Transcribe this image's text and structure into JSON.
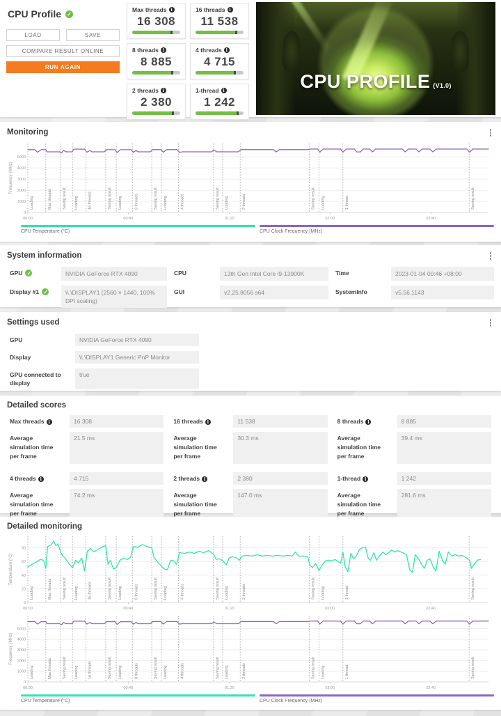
{
  "colors": {
    "accent_orange": "#f47b20",
    "score_green": "#72bf44",
    "bar_marker": "#4a4a4a",
    "temp_teal": "#2ee6b0",
    "freq_purple": "#8d64c8"
  },
  "header": {
    "title": "CPU Profile",
    "buttons": {
      "load": "LOAD",
      "save": "SAVE",
      "compare": "COMPARE RESULT ONLINE",
      "run_again": "RUN AGAIN"
    },
    "banner": {
      "title": "CPU PROFILE",
      "version": "(V1.0)"
    }
  },
  "scores": [
    {
      "label": "Max threads",
      "value": "16 308",
      "bar": 0.79
    },
    {
      "label": "16 threads",
      "value": "11 538",
      "bar": 0.82
    },
    {
      "label": "8 threads",
      "value": "8 885",
      "bar": 0.81
    },
    {
      "label": "4 threads",
      "value": "4 715",
      "bar": 0.8
    },
    {
      "label": "2 threads",
      "value": "2 380",
      "bar": 0.83
    },
    {
      "label": "1-thread",
      "value": "1 242",
      "bar": 0.85
    }
  ],
  "monitoring": {
    "title": "Monitoring"
  },
  "system_information": {
    "title": "System information",
    "entries": [
      {
        "label": "GPU",
        "value": "NVIDIA GeForce RTX 4090"
      },
      {
        "label": "CPU",
        "value": "13th Gen Intel Core i9-13900K"
      },
      {
        "label": "Time",
        "value": "2023-01-04 00:46 +08:00"
      },
      {
        "label": "Display #1",
        "value": "\\\\.\\DISPLAY1 (2560 × 1440, 100% DPI scaling)"
      },
      {
        "label": "GUI",
        "value": "v2.25.8056 s64"
      },
      {
        "label": "SystemInfo",
        "value": "v5.56.1143"
      }
    ]
  },
  "settings_used": {
    "title": "Settings used",
    "rows": [
      {
        "label": "GPU",
        "value": "NVIDIA GeForce RTX 4090"
      },
      {
        "label": "Display",
        "value": "\\\\.\\DISPLAY1 Generic PnP Monitor"
      },
      {
        "label": "GPU connected to display",
        "value": "true"
      }
    ]
  },
  "detailed_scores": {
    "title": "Detailed scores",
    "avg_label": "Average simulation time per frame",
    "items": [
      {
        "label": "Max threads",
        "score": "16 308",
        "avg": "21.5 ms"
      },
      {
        "label": "16 threads",
        "score": "11 538",
        "avg": "30.3 ms"
      },
      {
        "label": "8 threads",
        "score": "8 885",
        "avg": "39.4 ms"
      },
      {
        "label": "4 threads",
        "score": "4 715",
        "avg": "74.2 ms"
      },
      {
        "label": "2 threads",
        "score": "2 380",
        "avg": "147.0 ms"
      },
      {
        "label": "1-thread",
        "score": "1 242",
        "avg": "281.6 ms"
      }
    ]
  },
  "detailed_monitoring": {
    "title": "Detailed monitoring"
  },
  "legend": {
    "temperature": "CPU Temperature (°C)",
    "frequency": "CPU Clock Frequency (MHz)",
    "temp_color": "#2ee6b0",
    "freq_color": "#8d64c8"
  },
  "chart_data": [
    {
      "id": "cpu-clock-frequency",
      "type": "line",
      "ylabel": "Frequency (MHz)",
      "yticks": [
        0,
        1000,
        2000,
        3000,
        4000,
        5000
      ],
      "ylim": [
        0,
        6200
      ],
      "grid": true,
      "color": "#8d64c8",
      "xticks": [
        {
          "pos": 0,
          "label": "00:00"
        },
        {
          "pos": 21.8,
          "label": "00:40"
        },
        {
          "pos": 43.8,
          "label": "01:20"
        },
        {
          "pos": 65.6,
          "label": "02:00"
        },
        {
          "pos": 87.5,
          "label": "02:40"
        }
      ],
      "markers": [
        {
          "pos": 0,
          "label": "Loading"
        },
        {
          "pos": 3.9,
          "label": "Max threads"
        },
        {
          "pos": 7.1,
          "label": "Saving result"
        },
        {
          "pos": 9.7,
          "label": "Loading"
        },
        {
          "pos": 12.6,
          "label": "16 threads"
        },
        {
          "pos": 16.9,
          "label": "Saving result"
        },
        {
          "pos": 19.2,
          "label": "Loading"
        },
        {
          "pos": 22.7,
          "label": "8 threads"
        },
        {
          "pos": 26.9,
          "label": "Saving result"
        },
        {
          "pos": 29.0,
          "label": "Loading"
        },
        {
          "pos": 32.7,
          "label": "4 threads"
        },
        {
          "pos": 40.3,
          "label": "Saving result"
        },
        {
          "pos": 42.3,
          "label": "Loading"
        },
        {
          "pos": 46.1,
          "label": "2 threads"
        },
        {
          "pos": 61.1,
          "label": "Saving result"
        },
        {
          "pos": 63.2,
          "label": "Loading"
        },
        {
          "pos": 68.4,
          "label": "1 thread"
        },
        {
          "pos": 95.8,
          "label": "Saving result"
        }
      ],
      "points": [
        [
          0,
          5650
        ],
        [
          1.5,
          5650
        ],
        [
          2.1,
          5420
        ],
        [
          2.9,
          5640
        ],
        [
          3.9,
          5650
        ],
        [
          4.2,
          5450
        ],
        [
          6.9,
          5450
        ],
        [
          7.3,
          5360
        ],
        [
          7.8,
          5570
        ],
        [
          8.3,
          5450
        ],
        [
          9.6,
          5450
        ],
        [
          10.0,
          5690
        ],
        [
          12.3,
          5690
        ],
        [
          12.8,
          5420
        ],
        [
          13.5,
          5570
        ],
        [
          13.9,
          5450
        ],
        [
          16.6,
          5450
        ],
        [
          17.1,
          5640
        ],
        [
          18.9,
          5640
        ],
        [
          19.4,
          5390
        ],
        [
          20.1,
          5640
        ],
        [
          22.4,
          5640
        ],
        [
          22.9,
          5410
        ],
        [
          23.5,
          5570
        ],
        [
          23.9,
          5450
        ],
        [
          26.6,
          5450
        ],
        [
          27.1,
          5650
        ],
        [
          28.9,
          5650
        ],
        [
          29.4,
          5420
        ],
        [
          30.1,
          5650
        ],
        [
          32.4,
          5650
        ],
        [
          32.9,
          5410
        ],
        [
          33.6,
          5450
        ],
        [
          39.9,
          5450
        ],
        [
          40.4,
          5610
        ],
        [
          41.0,
          5450
        ],
        [
          45.7,
          5450
        ],
        [
          46.3,
          5650
        ],
        [
          53.3,
          5650
        ],
        [
          53.9,
          5440
        ],
        [
          54.6,
          5650
        ],
        [
          60.8,
          5650
        ],
        [
          61.3,
          5700
        ],
        [
          62.9,
          5700
        ],
        [
          63.4,
          5420
        ],
        [
          64.1,
          5700
        ],
        [
          67.9,
          5700
        ],
        [
          68.4,
          5410
        ],
        [
          69.1,
          5700
        ],
        [
          70.9,
          5700
        ],
        [
          71.4,
          5440
        ],
        [
          72.2,
          5440
        ],
        [
          72.8,
          5700
        ],
        [
          74.2,
          5700
        ],
        [
          74.8,
          5440
        ],
        [
          75.5,
          5700
        ],
        [
          79.6,
          5700
        ],
        [
          81.3,
          5700
        ],
        [
          81.9,
          5440
        ],
        [
          82.6,
          5700
        ],
        [
          84.3,
          5700
        ],
        [
          84.9,
          5440
        ],
        [
          85.6,
          5700
        ],
        [
          87.3,
          5700
        ],
        [
          87.9,
          5440
        ],
        [
          88.7,
          5700
        ],
        [
          91.4,
          5700
        ],
        [
          95.3,
          5700
        ],
        [
          95.9,
          5420
        ],
        [
          96.6,
          5700
        ],
        [
          100,
          5700
        ]
      ]
    },
    {
      "id": "cpu-temperature",
      "type": "line",
      "ylabel": "Temperature (°C)",
      "yticks": [
        0,
        20,
        40,
        60,
        80
      ],
      "ylim": [
        0,
        97
      ],
      "grid": true,
      "color": "#2ee6b0",
      "xticks": [
        {
          "pos": 0,
          "label": "00:00"
        },
        {
          "pos": 21.8,
          "label": "00:40"
        },
        {
          "pos": 43.8,
          "label": "01:20"
        },
        {
          "pos": 65.6,
          "label": "02:00"
        },
        {
          "pos": 87.5,
          "label": "02:40"
        }
      ],
      "markers": [
        {
          "pos": 0,
          "label": "Loading"
        },
        {
          "pos": 3.9,
          "label": "Max threads"
        },
        {
          "pos": 7.1,
          "label": "Saving result"
        },
        {
          "pos": 9.7,
          "label": "Loading"
        },
        {
          "pos": 12.6,
          "label": "16 threads"
        },
        {
          "pos": 16.9,
          "label": "Saving result"
        },
        {
          "pos": 19.2,
          "label": "Loading"
        },
        {
          "pos": 22.7,
          "label": "8 threads"
        },
        {
          "pos": 26.9,
          "label": "Saving result"
        },
        {
          "pos": 29.0,
          "label": "Loading"
        },
        {
          "pos": 32.7,
          "label": "4 threads"
        },
        {
          "pos": 40.3,
          "label": "Saving result"
        },
        {
          "pos": 42.3,
          "label": "Loading"
        },
        {
          "pos": 46.1,
          "label": "2 threads"
        },
        {
          "pos": 61.1,
          "label": "Saving result"
        },
        {
          "pos": 63.2,
          "label": "Loading"
        },
        {
          "pos": 68.4,
          "label": "1 thread"
        },
        {
          "pos": 95.8,
          "label": "Saving result"
        }
      ],
      "points": [
        [
          0,
          52
        ],
        [
          0.9,
          56
        ],
        [
          1.8,
          59
        ],
        [
          2.7,
          63
        ],
        [
          3.4,
          62
        ],
        [
          3.9,
          50
        ],
        [
          4.3,
          82
        ],
        [
          5.0,
          84
        ],
        [
          5.6,
          90
        ],
        [
          6.1,
          83
        ],
        [
          6.6,
          86
        ],
        [
          7.1,
          74
        ],
        [
          7.6,
          68
        ],
        [
          8.1,
          65
        ],
        [
          8.9,
          57
        ],
        [
          9.7,
          51
        ],
        [
          10.4,
          62
        ],
        [
          11.0,
          58
        ],
        [
          11.7,
          65
        ],
        [
          12.3,
          46
        ],
        [
          12.9,
          75
        ],
        [
          13.6,
          79
        ],
        [
          14.3,
          74
        ],
        [
          15.3,
          78
        ],
        [
          16.3,
          82
        ],
        [
          16.9,
          83
        ],
        [
          17.4,
          56
        ],
        [
          17.9,
          62
        ],
        [
          18.6,
          49
        ],
        [
          19.2,
          51
        ],
        [
          20.0,
          62
        ],
        [
          20.8,
          65
        ],
        [
          21.6,
          63
        ],
        [
          22.3,
          66
        ],
        [
          22.9,
          82
        ],
        [
          23.9,
          81
        ],
        [
          24.9,
          85
        ],
        [
          25.9,
          82
        ],
        [
          26.9,
          80
        ],
        [
          27.4,
          66
        ],
        [
          28.2,
          59
        ],
        [
          28.9,
          54
        ],
        [
          29.6,
          49
        ],
        [
          30.3,
          48
        ],
        [
          31.0,
          62
        ],
        [
          31.7,
          61
        ],
        [
          32.3,
          56
        ],
        [
          32.9,
          73
        ],
        [
          34.0,
          72
        ],
        [
          35.1,
          74
        ],
        [
          36.1,
          72
        ],
        [
          37.2,
          75
        ],
        [
          38.2,
          73
        ],
        [
          39.2,
          76
        ],
        [
          40.3,
          71
        ],
        [
          40.9,
          63
        ],
        [
          41.6,
          64
        ],
        [
          42.4,
          61
        ],
        [
          43.1,
          55
        ],
        [
          43.7,
          65
        ],
        [
          44.4,
          67
        ],
        [
          45.2,
          66
        ],
        [
          45.9,
          62
        ],
        [
          46.5,
          68
        ],
        [
          47.6,
          69
        ],
        [
          48.7,
          68
        ],
        [
          49.8,
          70
        ],
        [
          50.9,
          68
        ],
        [
          52.0,
          69
        ],
        [
          53.1,
          68
        ],
        [
          54.2,
          69
        ],
        [
          55.3,
          68
        ],
        [
          56.4,
          69
        ],
        [
          57.4,
          68
        ],
        [
          58.1,
          74
        ],
        [
          58.8,
          68
        ],
        [
          59.8,
          68
        ],
        [
          60.8,
          67
        ],
        [
          61.2,
          55
        ],
        [
          61.8,
          51
        ],
        [
          62.5,
          57
        ],
        [
          63.2,
          47
        ],
        [
          63.9,
          55
        ],
        [
          64.6,
          61
        ],
        [
          65.3,
          62
        ],
        [
          66.0,
          61
        ],
        [
          66.7,
          63
        ],
        [
          67.3,
          60
        ],
        [
          67.9,
          58
        ],
        [
          68.4,
          74
        ],
        [
          68.9,
          52
        ],
        [
          69.5,
          45
        ],
        [
          70.1,
          72
        ],
        [
          70.7,
          64
        ],
        [
          71.3,
          68
        ],
        [
          72.0,
          78
        ],
        [
          72.6,
          80
        ],
        [
          73.3,
          81
        ],
        [
          73.9,
          65
        ],
        [
          74.4,
          62
        ],
        [
          75.1,
          73
        ],
        [
          75.7,
          62
        ],
        [
          76.3,
          68
        ],
        [
          77.1,
          74
        ],
        [
          77.7,
          70
        ],
        [
          78.3,
          73
        ],
        [
          79.0,
          77
        ],
        [
          79.6,
          74
        ],
        [
          80.3,
          76
        ],
        [
          81.0,
          74
        ],
        [
          81.6,
          72
        ],
        [
          82.2,
          70
        ],
        [
          82.9,
          48
        ],
        [
          83.5,
          44
        ],
        [
          84.1,
          70
        ],
        [
          84.8,
          64
        ],
        [
          85.4,
          57
        ],
        [
          86.1,
          50
        ],
        [
          86.7,
          62
        ],
        [
          87.3,
          64
        ],
        [
          88.0,
          52
        ],
        [
          88.6,
          46
        ],
        [
          89.3,
          75
        ],
        [
          90.0,
          62
        ],
        [
          90.6,
          56
        ],
        [
          91.3,
          74
        ],
        [
          92.1,
          68
        ],
        [
          92.8,
          70
        ],
        [
          93.5,
          68
        ],
        [
          94.3,
          69
        ],
        [
          95.1,
          66
        ],
        [
          95.9,
          62
        ],
        [
          96.3,
          50
        ],
        [
          96.9,
          56
        ],
        [
          97.6,
          62
        ],
        [
          98.3,
          63
        ]
      ]
    }
  ]
}
